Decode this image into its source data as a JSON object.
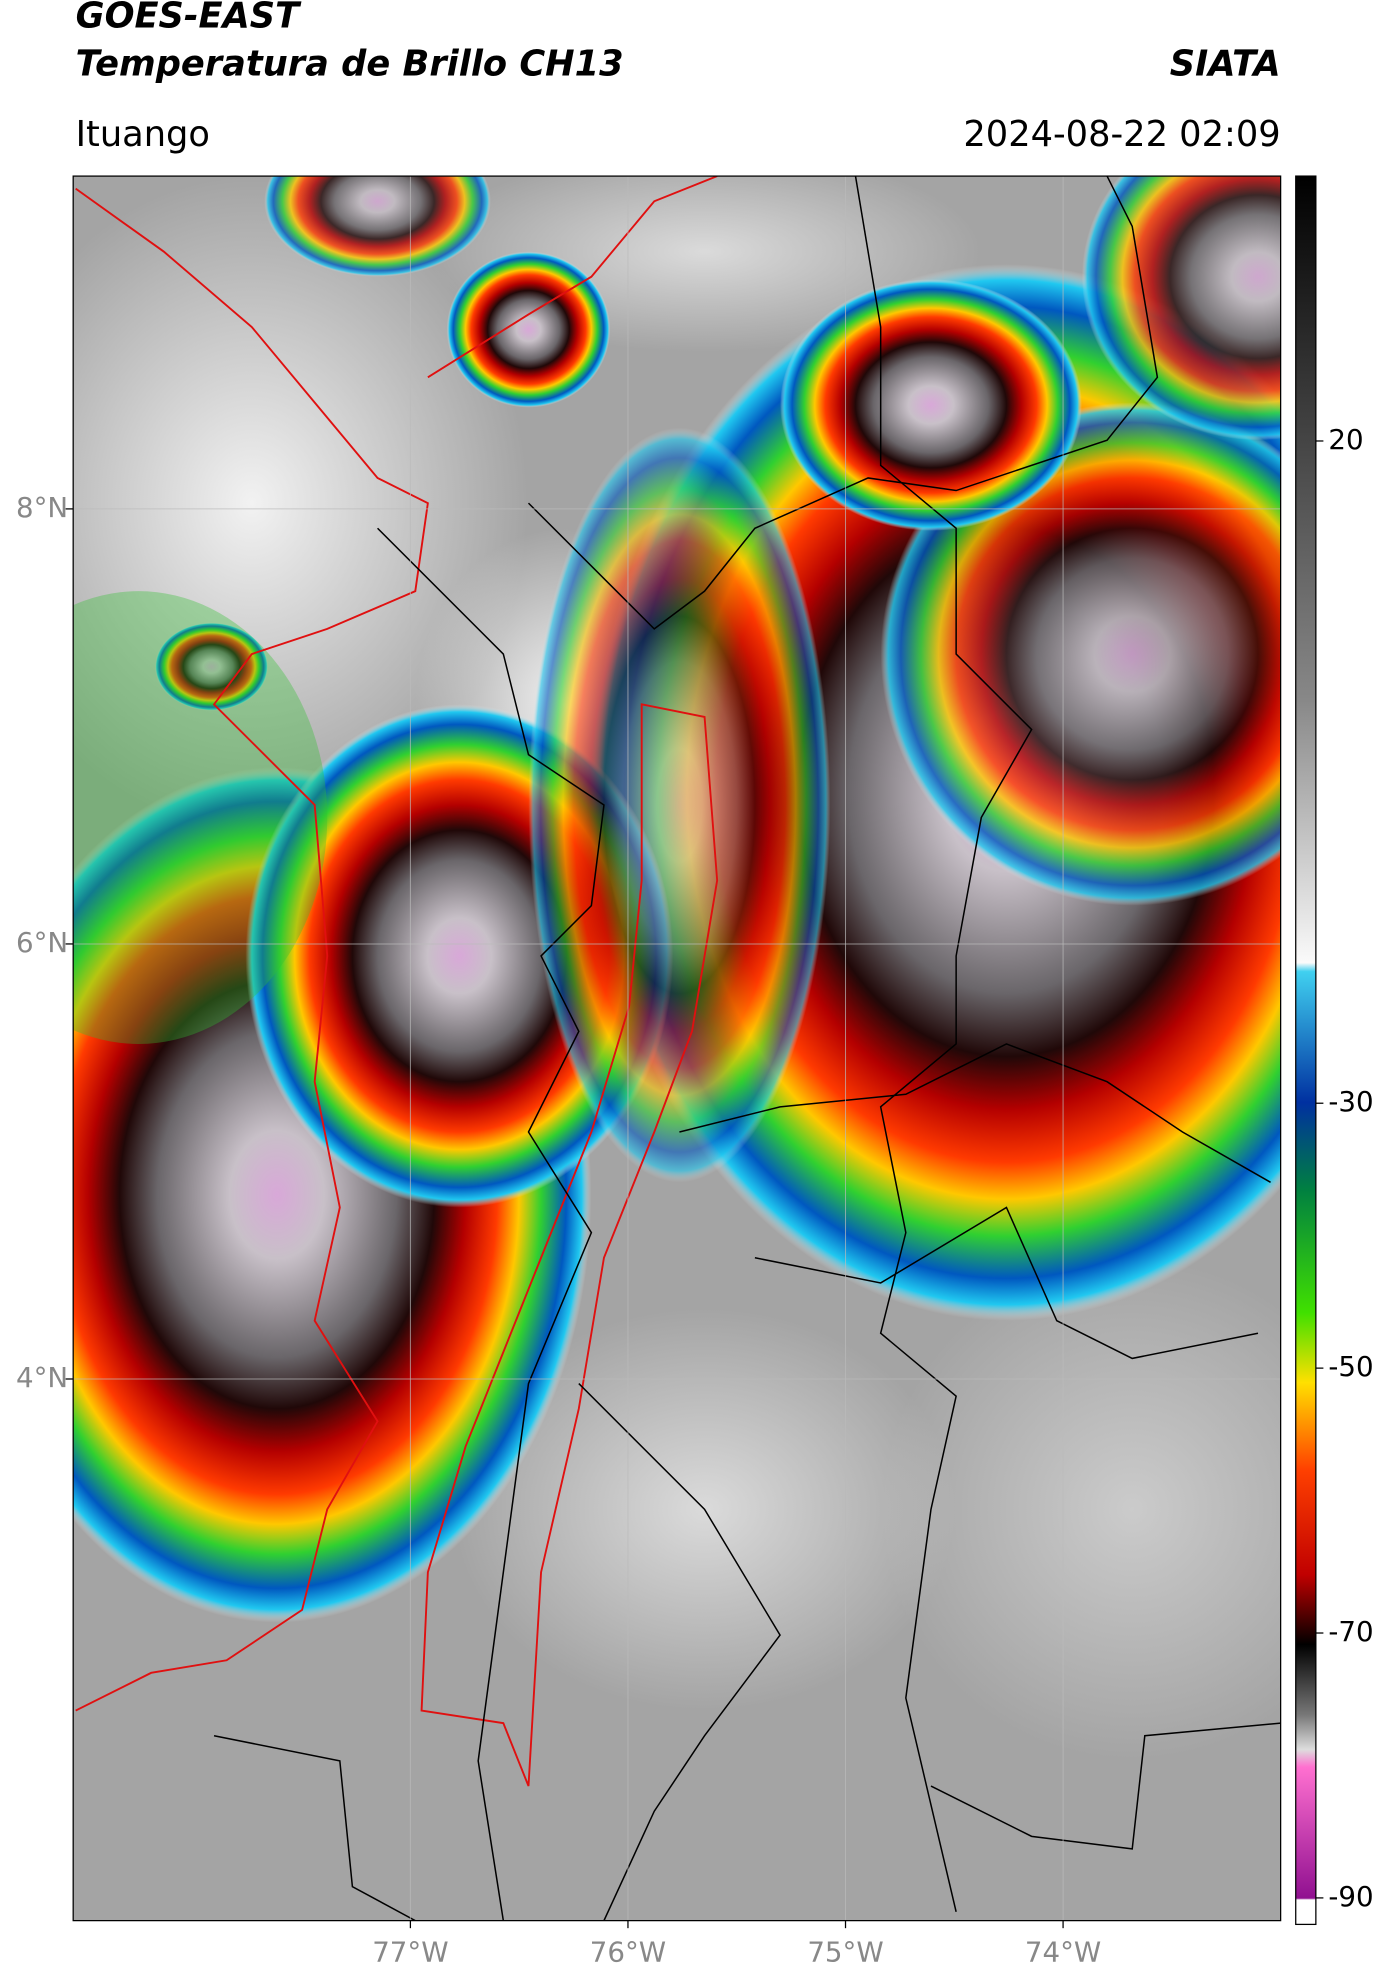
{
  "header": {
    "title": "GOES-EAST",
    "subtitle": "Temperatura de Brillo CH13",
    "source": "SIATA",
    "location": "Ituango",
    "datetime": "2024-08-22 02:09"
  },
  "map": {
    "xlim": [
      -78.55,
      -73.0
    ],
    "ylim": [
      1.51,
      9.53
    ],
    "xticks": [
      {
        "value": -77,
        "label": "77°W"
      },
      {
        "value": -76,
        "label": "76°W"
      },
      {
        "value": -75,
        "label": "75°W"
      },
      {
        "value": -74,
        "label": "74°W"
      }
    ],
    "yticks": [
      {
        "value": 8,
        "label": "8°N"
      },
      {
        "value": 6,
        "label": "6°N"
      },
      {
        "value": 4,
        "label": "4°N"
      }
    ]
  },
  "colorbar": {
    "lim": [
      -92,
      40
    ],
    "ticks": [
      20,
      -30,
      -50,
      -70,
      -90
    ]
  }
}
